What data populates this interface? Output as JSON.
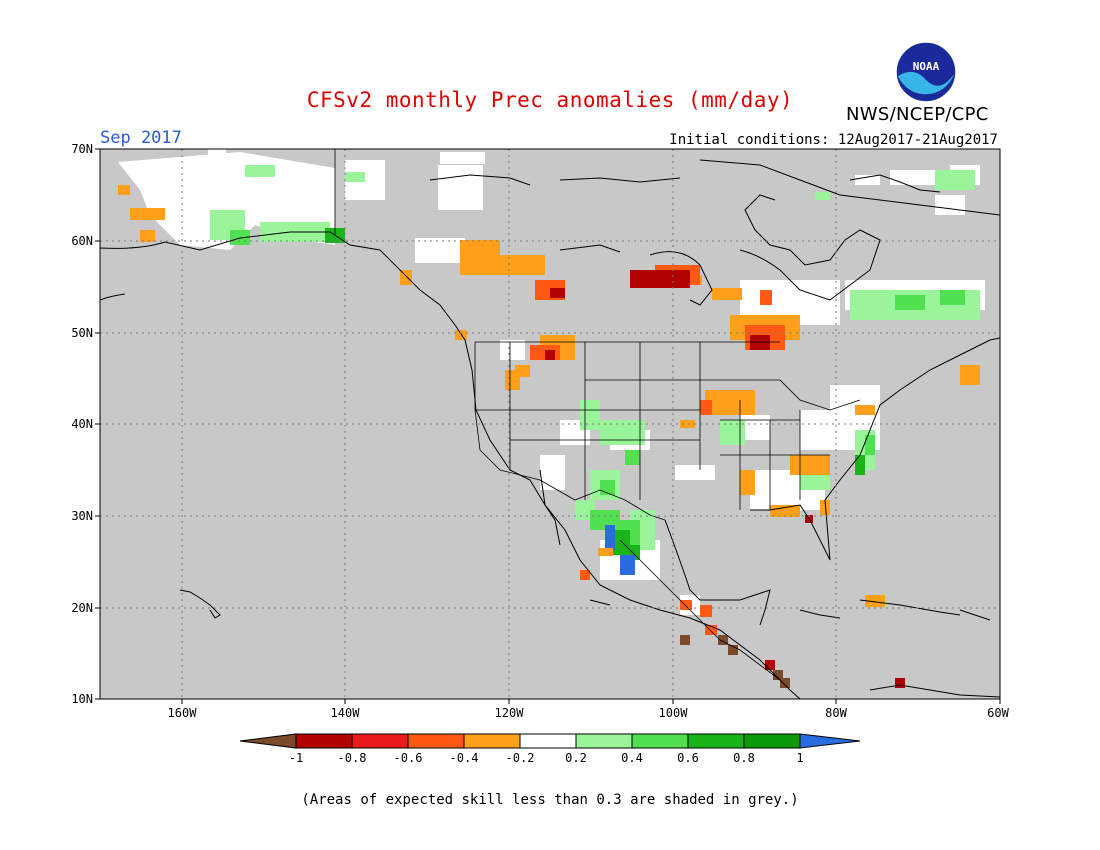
{
  "title": "CFSv2 monthly Prec anomalies (mm/day)",
  "org": "NWS/NCEP/CPC",
  "logo_text": "NOAA",
  "month": "Sep 2017",
  "initial_conditions": "Initial conditions: 12Aug2017-21Aug2017",
  "note": "(Areas of expected skill less than 0.3 are shaded in grey.)",
  "colors": {
    "title": "#e00000",
    "month": "#2a5bd7",
    "skill_grey": "#c8c8c8",
    "land_line": "#000000"
  },
  "lat_labels": [
    "70N",
    "60N",
    "50N",
    "40N",
    "30N",
    "20N",
    "10N"
  ],
  "lon_labels": [
    "160W",
    "140W",
    "120W",
    "100W",
    "80W",
    "60W"
  ],
  "colorbar": {
    "labels": [
      "-1",
      "-0.8",
      "-0.6",
      "-0.4",
      "-0.2",
      "0.2",
      "0.4",
      "0.6",
      "0.8",
      "1"
    ],
    "colors": [
      "#7a4a2a",
      "#b00000",
      "#e81a1a",
      "#ff5a14",
      "#ff9f1a",
      "#ffffff",
      "#9af59a",
      "#50e050",
      "#18b418",
      "#0a9a0a",
      "#2a6cdf"
    ]
  }
}
